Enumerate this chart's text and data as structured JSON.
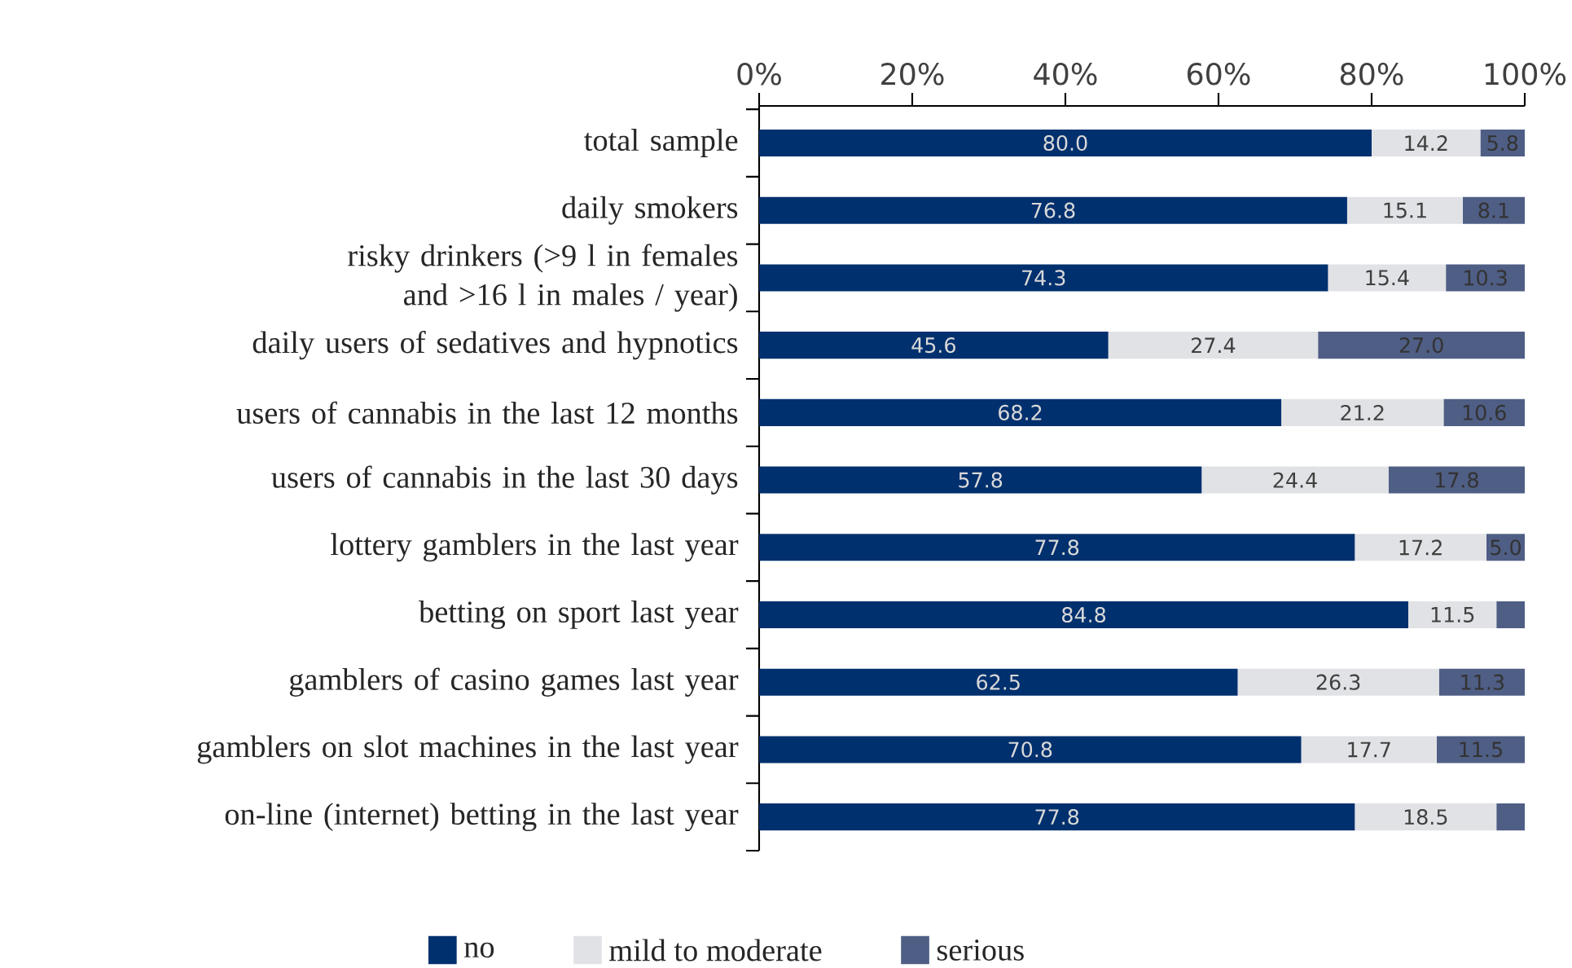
{
  "chart_data": {
    "type": "bar",
    "orientation": "horizontal",
    "stacked": true,
    "categories": [
      "total sample",
      "daily smokers",
      "risky drinkers (>9 l in females and >16 l in males / year)",
      "daily users of sedatives and hypnotics",
      "users of cannabis  in the last 12 months",
      "users of cannabis  in the last 30 days",
      "lottery gamblers  in the last  year",
      "betting on sport  last year",
      "gamblers of casino games  last year",
      "gamblers on slot machines in the last year",
      "on-line (internet) betting in the last year"
    ],
    "series": [
      {
        "name": "no",
        "color": "#00306e",
        "values": [
          80.0,
          76.8,
          74.3,
          45.6,
          68.2,
          57.8,
          77.8,
          84.8,
          62.5,
          70.8,
          77.8
        ],
        "value_labels": [
          "80.0",
          "76.8",
          "74.3",
          "45.6",
          "68.2",
          "57.8",
          "77.8",
          "84.8",
          "62.5",
          "70.8",
          "77.8"
        ]
      },
      {
        "name": "mild to moderate",
        "color": "#e1e2e6",
        "values": [
          14.2,
          15.1,
          15.4,
          27.4,
          21.2,
          24.4,
          17.2,
          11.5,
          26.3,
          17.7,
          18.5
        ],
        "value_labels": [
          "14.2",
          "15.1",
          "15.4",
          "27.4",
          "21.2",
          "24.4",
          "17.2",
          "11.5",
          "26.3",
          "17.7",
          "18.5"
        ]
      },
      {
        "name": "serious",
        "color": "#4f5e85",
        "values": [
          5.8,
          8.1,
          10.3,
          27.0,
          10.6,
          17.8,
          5.0,
          3.7,
          11.3,
          11.5,
          3.7
        ],
        "value_labels": [
          "5.8",
          "8.1",
          "10.3",
          "27.0",
          "10.6",
          "17.8",
          "5.0",
          null,
          "11.3",
          "11.5",
          null
        ]
      }
    ],
    "xlim": [
      0,
      100
    ],
    "xticks": [
      {
        "value": 0,
        "label": "0%"
      },
      {
        "value": 20,
        "label": "20%"
      },
      {
        "value": 40,
        "label": "40%"
      },
      {
        "value": 60,
        "label": "60%"
      },
      {
        "value": 80,
        "label": "80%"
      },
      {
        "value": 100,
        "label": "100%"
      }
    ],
    "grid": false,
    "legend": "bottom"
  }
}
